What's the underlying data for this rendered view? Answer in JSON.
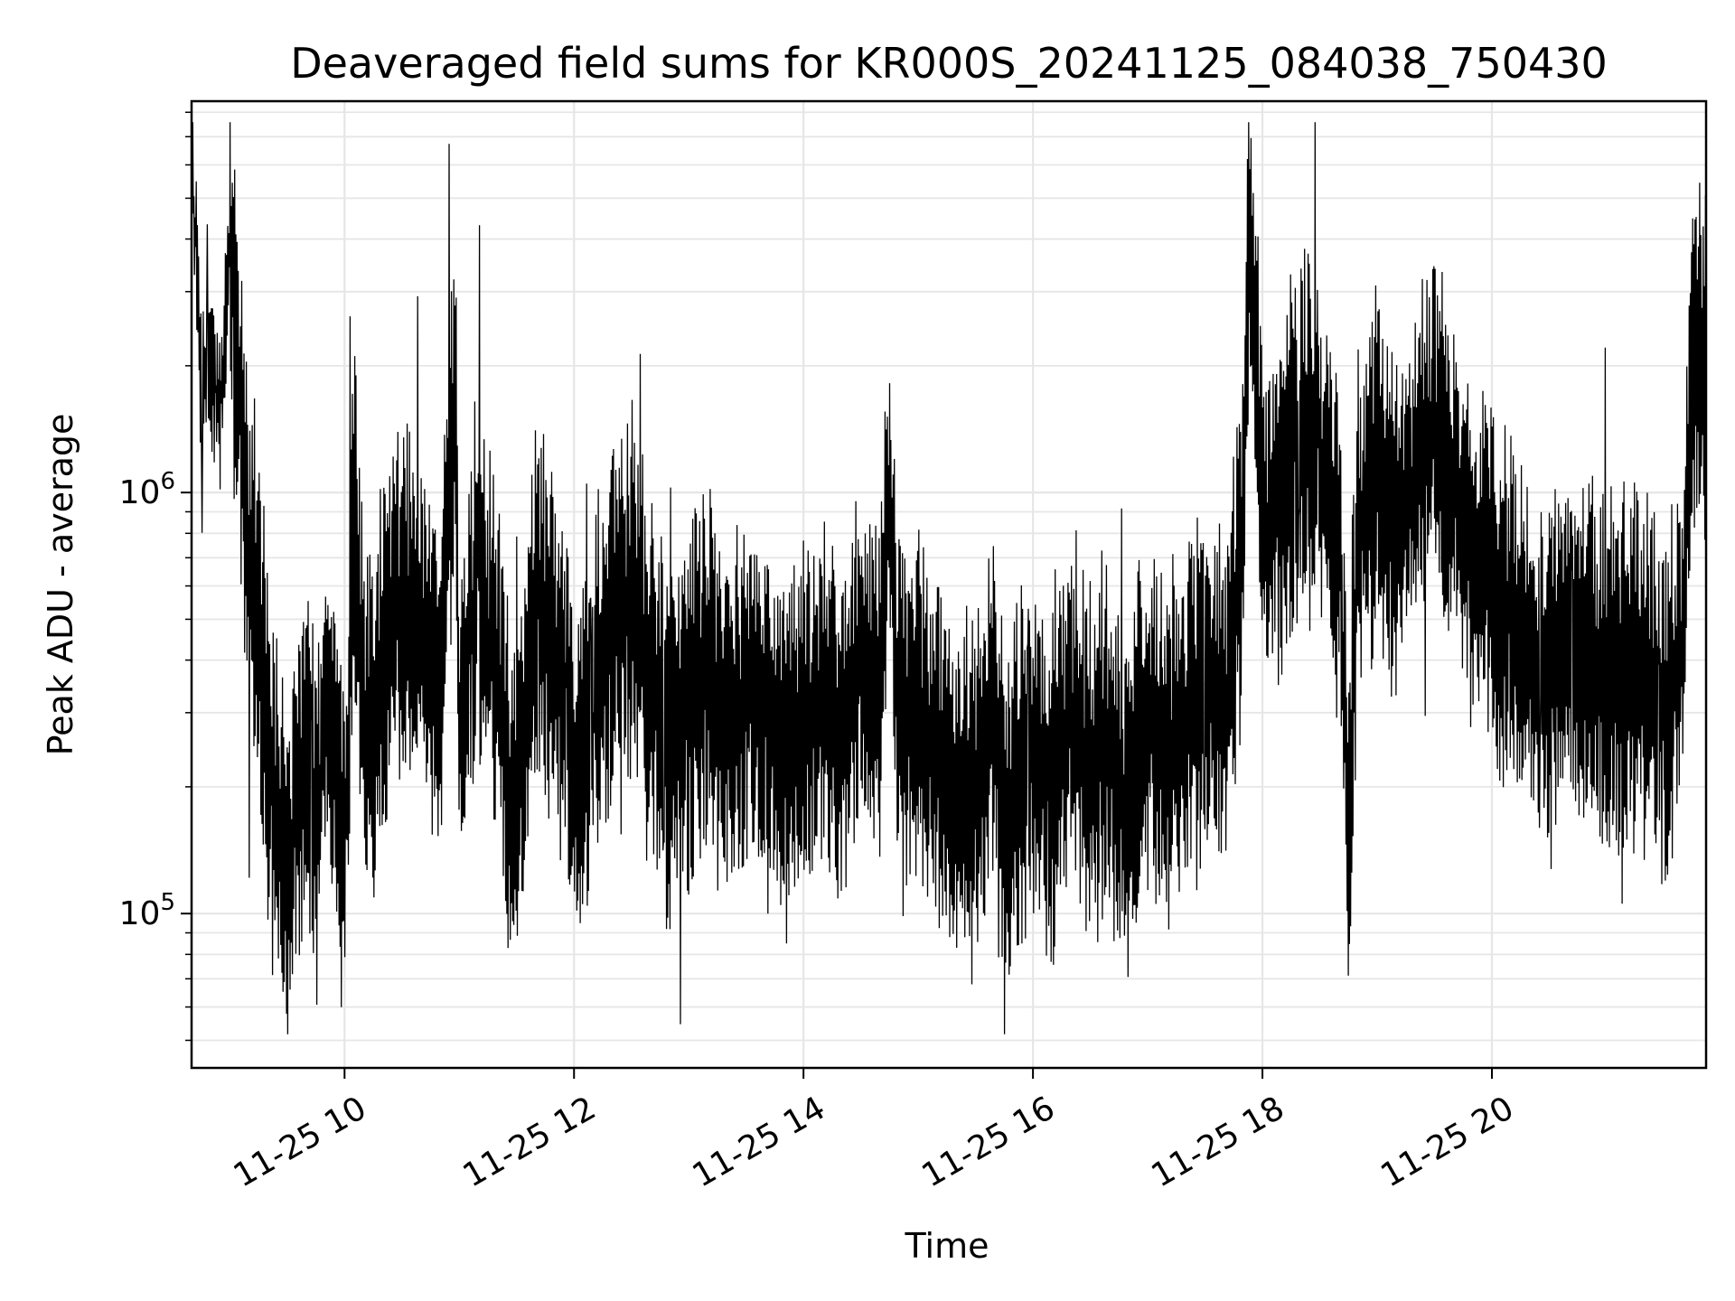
{
  "chart_data": {
    "type": "line",
    "title": "Deaveraged field sums for KR000S_20241125_084038_750430",
    "xlabel": "Time",
    "ylabel": "Peak ADU - average",
    "yscale": "log",
    "ylim": [
      43000,
      8500000
    ],
    "xlim": [
      "2024-11-25 08:40",
      "2024-11-25 21:52"
    ],
    "x_ticks": [
      {
        "value": "2024-11-25 10:00",
        "label": "11-25 10"
      },
      {
        "value": "2024-11-25 12:00",
        "label": "11-25 12"
      },
      {
        "value": "2024-11-25 14:00",
        "label": "11-25 14"
      },
      {
        "value": "2024-11-25 16:00",
        "label": "11-25 16"
      },
      {
        "value": "2024-11-25 18:00",
        "label": "11-25 18"
      },
      {
        "value": "2024-11-25 20:00",
        "label": "11-25 20"
      }
    ],
    "y_ticks": [
      {
        "value": 100000,
        "base": "10",
        "exp": "5"
      },
      {
        "value": 1000000,
        "base": "10",
        "exp": "6"
      }
    ],
    "grid": true,
    "line_color": "#000000",
    "grid_color": "#e6e6e6",
    "series": [
      {
        "x": [
          "08:40",
          "08:45",
          "08:50",
          "08:55",
          "09:00",
          "09:05",
          "09:10",
          "09:15",
          "09:20",
          "09:25",
          "09:30",
          "09:35",
          "09:40",
          "09:45",
          "09:50",
          "09:55",
          "10:00",
          "10:05",
          "10:10",
          "10:15",
          "10:20",
          "10:30",
          "10:40",
          "10:50",
          "10:58",
          "11:00",
          "11:10",
          "11:20",
          "11:30",
          "11:40",
          "11:50",
          "12:00",
          "12:10",
          "12:20",
          "12:30",
          "12:40",
          "12:50",
          "13:00",
          "13:10",
          "13:20",
          "13:30",
          "13:40",
          "13:50",
          "14:00",
          "14:10",
          "14:20",
          "14:30",
          "14:40",
          "14:45",
          "14:50",
          "15:00",
          "15:10",
          "15:20",
          "15:30",
          "15:40",
          "15:45",
          "15:50",
          "16:00",
          "16:10",
          "16:20",
          "16:30",
          "16:40",
          "16:50",
          "17:00",
          "17:10",
          "17:20",
          "17:30",
          "17:40",
          "17:50",
          "17:53",
          "18:00",
          "18:10",
          "18:20",
          "18:30",
          "18:40",
          "18:45",
          "18:50",
          "19:00",
          "19:10",
          "19:20",
          "19:30",
          "19:40",
          "19:50",
          "20:00",
          "20:10",
          "20:20",
          "20:30",
          "20:40",
          "20:50",
          "21:00",
          "21:10",
          "21:20",
          "21:30",
          "21:40",
          "21:45",
          "21:50"
        ],
        "y": [
          7000000,
          1800000,
          2100000,
          1500000,
          3800000,
          1900000,
          700000,
          500000,
          250000,
          160000,
          120000,
          180000,
          280000,
          150000,
          300000,
          250000,
          140000,
          900000,
          300000,
          250000,
          400000,
          600000,
          450000,
          350000,
          1800000,
          300000,
          700000,
          350000,
          150000,
          600000,
          400000,
          200000,
          300000,
          500000,
          600000,
          350000,
          250000,
          300000,
          400000,
          250000,
          350000,
          300000,
          250000,
          280000,
          300000,
          250000,
          400000,
          300000,
          1200000,
          280000,
          300000,
          250000,
          200000,
          180000,
          300000,
          140000,
          200000,
          250000,
          200000,
          300000,
          220000,
          250000,
          180000,
          300000,
          250000,
          280000,
          350000,
          300000,
          900000,
          4800000,
          800000,
          1000000,
          1500000,
          1200000,
          800000,
          140000,
          900000,
          1100000,
          800000,
          1100000,
          1500000,
          1000000,
          700000,
          600000,
          500000,
          400000,
          350000,
          450000,
          400000,
          350000,
          400000,
          350000,
          300000,
          400000,
          2200000,
          1800000
        ]
      }
    ]
  }
}
